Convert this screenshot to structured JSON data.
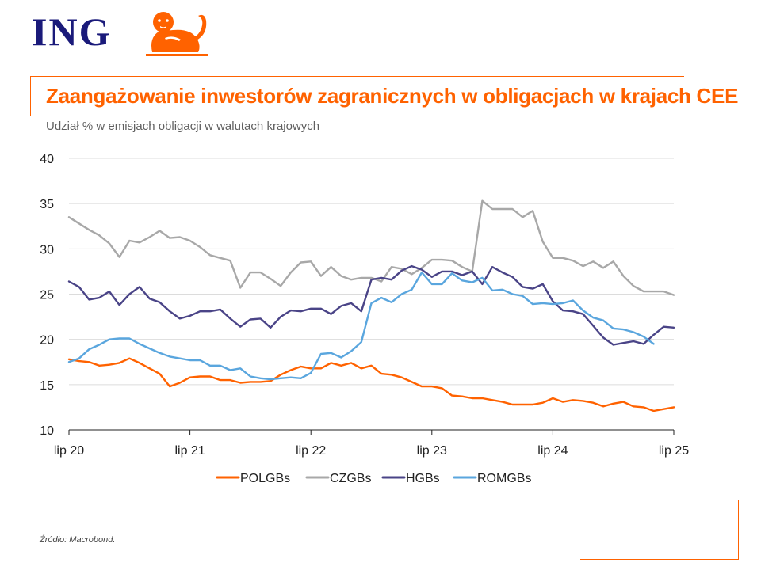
{
  "brand": {
    "name": "ING",
    "color": "#ff6200",
    "text_color": "#1a1a7a"
  },
  "header": {
    "title": "Zaangażowanie inwestorów zagranicznych w obligacjach w krajach CEE",
    "subtitle": "Udział % w emisjach obligacji w walutach krajowych"
  },
  "footer": {
    "source": "Źródło: Macrobond."
  },
  "chart_data": {
    "type": "line",
    "title": "Zaangażowanie inwestorów zagranicznych w obligacjach w krajach CEE",
    "subtitle": "Udział % w emisjach obligacji w walutach krajowych",
    "xlabel": "",
    "ylabel": "",
    "x_range": [
      "2020-07",
      "2025-07"
    ],
    "ylim": [
      10,
      40
    ],
    "yticks": [
      10,
      15,
      20,
      25,
      30,
      35,
      40
    ],
    "xtick_labels": [
      "lip 20",
      "lip 21",
      "lip 22",
      "lip 23",
      "lip 24",
      "lip 25"
    ],
    "xtick_dates": [
      "2020-07",
      "2021-07",
      "2022-07",
      "2023-07",
      "2024-07",
      "2025-07"
    ],
    "grid": "horizontal",
    "legend": "bottom",
    "x": [
      "2020-07",
      "2020-08",
      "2020-09",
      "2020-10",
      "2020-11",
      "2020-12",
      "2021-01",
      "2021-02",
      "2021-03",
      "2021-04",
      "2021-05",
      "2021-06",
      "2021-07",
      "2021-08",
      "2021-09",
      "2021-10",
      "2021-11",
      "2021-12",
      "2022-01",
      "2022-02",
      "2022-03",
      "2022-04",
      "2022-05",
      "2022-06",
      "2022-07",
      "2022-08",
      "2022-09",
      "2022-10",
      "2022-11",
      "2022-12",
      "2023-01",
      "2023-02",
      "2023-03",
      "2023-04",
      "2023-05",
      "2023-06",
      "2023-07",
      "2023-08",
      "2023-09",
      "2023-10",
      "2023-11",
      "2023-12",
      "2024-01",
      "2024-02",
      "2024-03",
      "2024-04",
      "2024-05",
      "2024-06",
      "2024-07",
      "2024-08",
      "2024-09",
      "2024-10",
      "2024-11",
      "2024-12",
      "2025-01",
      "2025-02",
      "2025-03",
      "2025-04",
      "2025-05",
      "2025-06",
      "2025-07"
    ],
    "series": [
      {
        "name": "POLGBs",
        "color": "#ff6200",
        "values": [
          17.8,
          17.6,
          17.5,
          17.1,
          17.2,
          17.4,
          17.9,
          17.4,
          16.8,
          16.2,
          14.8,
          15.2,
          15.8,
          15.9,
          15.9,
          15.5,
          15.5,
          15.2,
          15.3,
          15.3,
          15.4,
          16.1,
          16.6,
          17.0,
          16.8,
          16.8,
          17.4,
          17.1,
          17.4,
          16.8,
          17.1,
          16.2,
          16.1,
          15.8,
          15.3,
          14.8,
          14.8,
          14.6,
          13.8,
          13.7,
          13.5,
          13.5,
          13.3,
          13.1,
          12.8,
          12.8,
          12.8,
          13.0,
          13.5,
          13.1,
          13.3,
          13.2,
          13.0,
          12.6,
          12.9,
          13.1,
          12.6,
          12.5,
          12.1,
          12.3,
          12.5
        ]
      },
      {
        "name": "CZGBs",
        "color": "#a8a8a8",
        "values": [
          33.5,
          32.8,
          32.1,
          31.5,
          30.6,
          29.1,
          30.9,
          30.7,
          31.3,
          32.0,
          31.2,
          31.3,
          30.9,
          30.2,
          29.3,
          29.0,
          28.7,
          25.7,
          27.4,
          27.4,
          26.7,
          25.9,
          27.4,
          28.5,
          28.6,
          27.0,
          28.0,
          27.0,
          26.6,
          26.8,
          26.8,
          26.4,
          28.0,
          27.8,
          27.2,
          27.9,
          28.8,
          28.8,
          28.7,
          28.0,
          27.5,
          35.3,
          34.4,
          34.4,
          34.4,
          33.5,
          34.2,
          30.8,
          29.0,
          29.0,
          28.7,
          28.1,
          28.6,
          27.9,
          28.6,
          27.0,
          25.9,
          25.3,
          25.3,
          25.3,
          24.9
        ]
      },
      {
        "name": "HGBs",
        "color": "#4a4487",
        "values": [
          26.4,
          25.8,
          24.4,
          24.6,
          25.3,
          23.8,
          25.0,
          25.8,
          24.5,
          24.1,
          23.1,
          22.3,
          22.6,
          23.1,
          23.1,
          23.3,
          22.3,
          21.4,
          22.2,
          22.3,
          21.3,
          22.5,
          23.2,
          23.1,
          23.4,
          23.4,
          22.8,
          23.7,
          24.0,
          23.1,
          26.6,
          26.8,
          26.6,
          27.6,
          28.1,
          27.7,
          26.9,
          27.5,
          27.5,
          27.1,
          27.5,
          26.1,
          28.0,
          27.4,
          26.9,
          25.8,
          25.6,
          26.1,
          24.2,
          23.2,
          23.1,
          22.8,
          21.5,
          20.2,
          19.4,
          19.6,
          19.8,
          19.5,
          20.5,
          21.4,
          21.3
        ]
      },
      {
        "name": "ROMGBs",
        "color": "#5aa6de",
        "values": [
          17.5,
          17.9,
          18.9,
          19.4,
          20.0,
          20.1,
          20.1,
          19.5,
          19.0,
          18.5,
          18.1,
          17.9,
          17.7,
          17.7,
          17.1,
          17.1,
          16.6,
          16.8,
          15.9,
          15.7,
          15.6,
          15.7,
          15.8,
          15.7,
          16.3,
          18.4,
          18.5,
          18.0,
          18.7,
          19.7,
          24.0,
          24.6,
          24.1,
          25.0,
          25.5,
          27.4,
          26.1,
          26.1,
          27.3,
          26.5,
          26.3,
          26.8,
          25.4,
          25.5,
          25.0,
          24.8,
          23.9,
          24.0,
          23.9,
          24.0,
          24.3,
          23.2,
          22.4,
          22.1,
          21.2,
          21.1,
          20.8,
          20.3,
          19.5,
          null,
          null
        ]
      }
    ]
  }
}
